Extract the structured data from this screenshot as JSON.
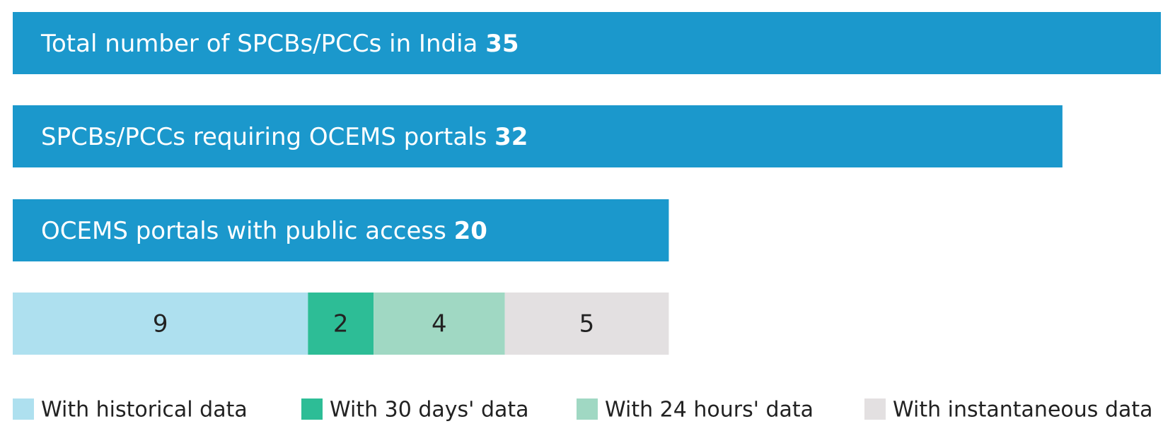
{
  "chart_data": [
    {
      "type": "bar",
      "categories": [
        "Total number of SPCBs/PCCs in India",
        "SPCBs/PCCs requiring OCEMS portals",
        "OCEMS portals with public access"
      ],
      "values": [
        35,
        32,
        20
      ],
      "color": "#1b98cc"
    },
    {
      "type": "stacked-bar",
      "series": [
        {
          "name": "With historical data",
          "color": "#aee0ef",
          "values": [
            9
          ]
        },
        {
          "name": "With 30 days' data",
          "color": "#2dbd96",
          "values": [
            2
          ]
        },
        {
          "name": "With 24 hours' data",
          "color": "#a0d8c3",
          "values": [
            4
          ]
        },
        {
          "name": "With instantaneous data",
          "color": "#e3e0e1",
          "values": [
            5
          ]
        }
      ]
    }
  ]
}
